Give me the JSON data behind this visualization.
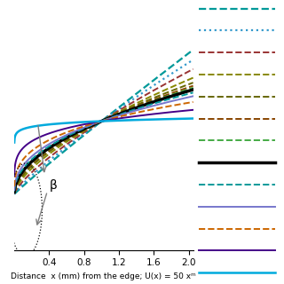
{
  "xlabel": "Distance  x (mm) from the edge; U(x) = 50 xᵐ",
  "xlim": [
    0,
    2.05
  ],
  "ylim": [
    -0.09,
    0.3
  ],
  "xticks": [
    0.4,
    0.8,
    1.2,
    1.6,
    2
  ],
  "background_color": "#ffffff",
  "beta_label": "β",
  "C": 0.118,
  "lines": [
    {
      "m": -0.9,
      "color": "#009999",
      "linestyle": "--",
      "lw": 1.6
    },
    {
      "m": -0.7,
      "color": "#3399cc",
      "linestyle": ":",
      "lw": 1.6
    },
    {
      "m": -0.5,
      "color": "#993333",
      "linestyle": "--",
      "lw": 1.4
    },
    {
      "m": -0.3,
      "color": "#888800",
      "linestyle": "--",
      "lw": 1.4
    },
    {
      "m": -0.18,
      "color": "#666600",
      "linestyle": "--",
      "lw": 1.4
    },
    {
      "m": -0.1,
      "color": "#884400",
      "linestyle": "--",
      "lw": 1.4
    },
    {
      "m": -0.05,
      "color": "#44aa44",
      "linestyle": "--",
      "lw": 1.4
    },
    {
      "m": 0.0,
      "color": "#000000",
      "linestyle": "-",
      "lw": 2.5
    },
    {
      "m": 0.08,
      "color": "#009999",
      "linestyle": "--",
      "lw": 1.4
    },
    {
      "m": 0.18,
      "color": "#7777cc",
      "linestyle": "-",
      "lw": 1.4
    },
    {
      "m": 0.35,
      "color": "#cc6600",
      "linestyle": "--",
      "lw": 1.4
    },
    {
      "m": 0.6,
      "color": "#440088",
      "linestyle": "-",
      "lw": 1.4
    },
    {
      "m": 4.0,
      "color": "#00aadd",
      "linestyle": "-",
      "lw": 1.8
    }
  ],
  "legend_items": [
    {
      "color": "#009999",
      "linestyle": "--",
      "lw": 1.6
    },
    {
      "color": "#3399cc",
      "linestyle": ":",
      "lw": 1.6
    },
    {
      "color": "#993333",
      "linestyle": "--",
      "lw": 1.4
    },
    {
      "color": "#888800",
      "linestyle": "--",
      "lw": 1.4
    },
    {
      "color": "#666600",
      "linestyle": "--",
      "lw": 1.4
    },
    {
      "color": "#884400",
      "linestyle": "--",
      "lw": 1.4
    },
    {
      "color": "#44aa44",
      "linestyle": "--",
      "lw": 1.4
    },
    {
      "color": "#000000",
      "linestyle": "-",
      "lw": 2.5
    },
    {
      "color": "#009999",
      "linestyle": "--",
      "lw": 1.4
    },
    {
      "color": "#7777cc",
      "linestyle": "-",
      "lw": 1.4
    },
    {
      "color": "#cc6600",
      "linestyle": "--",
      "lw": 1.4
    },
    {
      "color": "#440088",
      "linestyle": "-",
      "lw": 1.4
    },
    {
      "color": "#00aadd",
      "linestyle": "-",
      "lw": 1.8
    }
  ]
}
